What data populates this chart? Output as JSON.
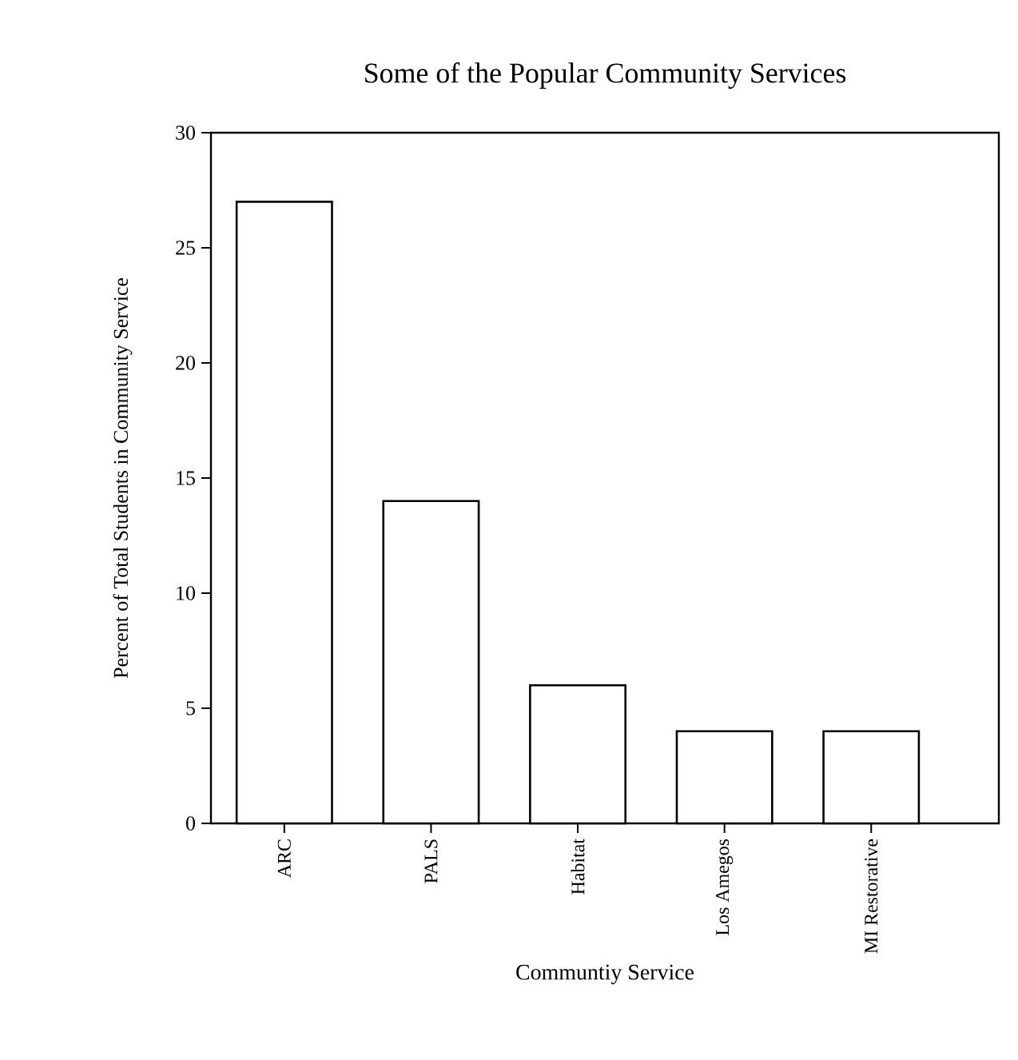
{
  "chart_data": {
    "type": "bar",
    "title": "Some of the Popular Community Services",
    "xlabel": "Communtiy Service",
    "ylabel": "Percent of Total Students in Community Service",
    "categories": [
      "ARC",
      "PALS",
      "Habitat",
      "Los Amegos",
      "MI Restorative"
    ],
    "values": [
      27,
      14,
      6,
      4,
      4
    ],
    "color": "#ffffff",
    "ylim": [
      0,
      30
    ],
    "yticks": [
      0,
      5,
      10,
      15,
      20,
      25,
      30
    ],
    "grid": false
  }
}
